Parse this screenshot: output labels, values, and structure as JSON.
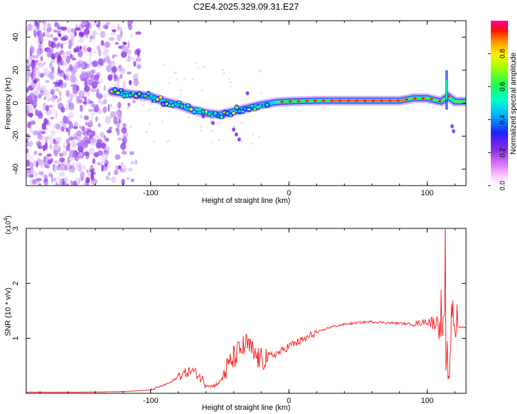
{
  "title": "C2E4.2025.329.09.31.E27",
  "chart_data": [
    {
      "type": "heatmap",
      "name": "spectrogram",
      "xlabel": "Height of straight line (km)",
      "ylabel": "Frequency (Hz)",
      "xlim": [
        -190,
        128
      ],
      "ylim": [
        -50,
        50
      ],
      "xticks": [
        -100,
        0,
        100
      ],
      "yticks": [
        -40,
        -20,
        0,
        20,
        40
      ],
      "colorbar": {
        "label": "Normalized spectral amplitude",
        "range": [
          0,
          1
        ],
        "ticks": [
          0.0,
          0.2,
          0.4,
          0.6,
          0.8
        ],
        "tick_labels": [
          "0.0",
          "0.2",
          "0.4",
          "0.6",
          "0.8"
        ],
        "colors": [
          "#ffffff",
          "#c9a2f5",
          "#8a2be2",
          "#2020ff",
          "#00ccff",
          "#00ff88",
          "#66ff00",
          "#ffff00",
          "#ff8800",
          "#ff0000",
          "#ff00aa"
        ]
      },
      "track": {
        "x": [
          -128,
          -120,
          -110,
          -100,
          -90,
          -80,
          -70,
          -60,
          -50,
          -40,
          -30,
          -20,
          -10,
          0,
          20,
          40,
          60,
          80,
          90,
          100,
          105,
          110,
          115,
          120,
          128
        ],
        "y": [
          7,
          6,
          5,
          4,
          1,
          -1,
          -4,
          -6,
          -7,
          -5,
          -3,
          -1,
          0.5,
          1,
          1.5,
          1.5,
          1.5,
          1.5,
          3,
          3,
          2,
          1,
          4,
          1,
          1
        ]
      },
      "noise_region_x": [
        -190,
        -108
      ]
    },
    {
      "type": "line",
      "name": "snr",
      "xlabel": "Height of straight line (km)",
      "ylabel": "SNR (10 * v/v)",
      "multiplier_label": "(x10",
      "multiplier_exp": "4",
      "multiplier_close": ")",
      "xlim": [
        -190,
        128
      ],
      "ylim": [
        0,
        3
      ],
      "xticks": [
        -100,
        0,
        100
      ],
      "yticks": [
        1,
        2,
        3
      ],
      "series": [
        {
          "name": "SNR",
          "color": "#ff2222",
          "x": [
            -190,
            -150,
            -120,
            -100,
            -95,
            -90,
            -85,
            -80,
            -75,
            -70,
            -65,
            -60,
            -55,
            -50,
            -45,
            -40,
            -35,
            -30,
            -25,
            -20,
            -15,
            -10,
            -5,
            0,
            10,
            20,
            30,
            40,
            50,
            60,
            70,
            80,
            90,
            95,
            100,
            105,
            108,
            110,
            112,
            114,
            116,
            118,
            120,
            124,
            128
          ],
          "y": [
            0.02,
            0.02,
            0.03,
            0.06,
            0.1,
            0.15,
            0.2,
            0.3,
            0.35,
            0.4,
            0.3,
            0.15,
            0.12,
            0.2,
            0.4,
            0.6,
            0.75,
            0.85,
            0.65,
            0.55,
            0.65,
            0.7,
            0.75,
            0.85,
            0.95,
            1.1,
            1.2,
            1.25,
            1.28,
            1.3,
            1.28,
            1.27,
            1.25,
            1.27,
            1.3,
            1.25,
            1.3,
            1.4,
            1.1,
            0.5,
            0.3,
            1.6,
            1.2,
            1.2,
            1.2
          ]
        }
      ]
    }
  ]
}
